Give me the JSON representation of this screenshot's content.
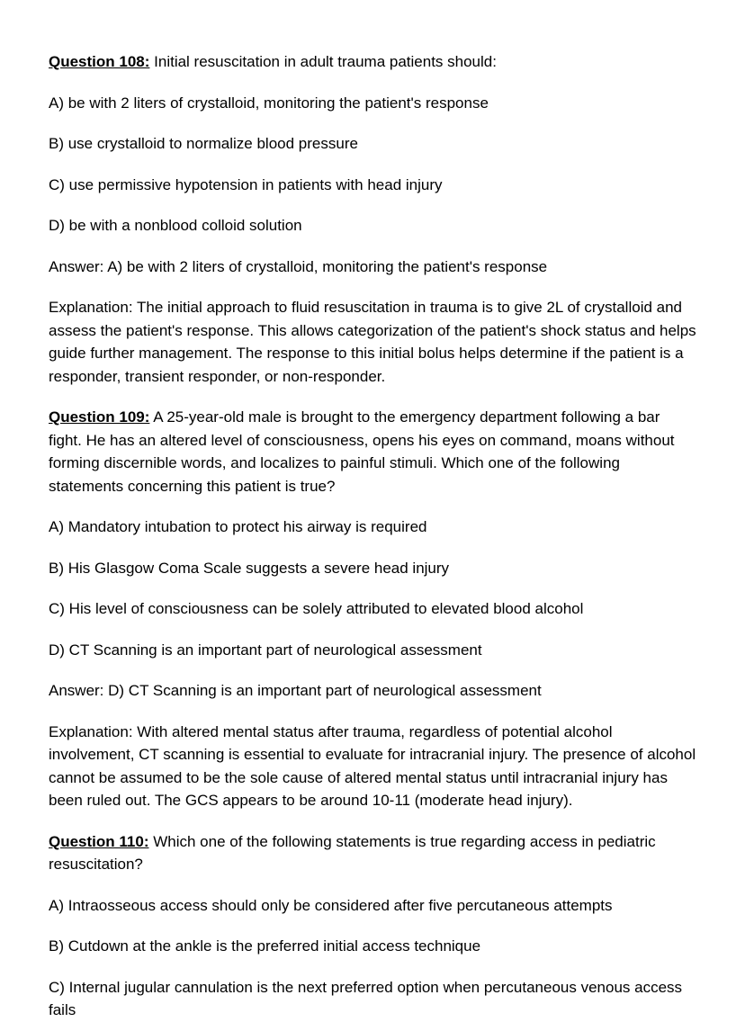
{
  "questions": [
    {
      "label": "Question 108:",
      "stem": " Initial resuscitation in adult trauma patients should:",
      "options": [
        "A) be with 2 liters of crystalloid, monitoring the patient's response",
        "B) use crystalloid to normalize blood pressure",
        "C) use permissive hypotension in patients with head injury",
        "D) be with a nonblood colloid solution"
      ],
      "answer": "Answer: A) be with 2 liters of crystalloid, monitoring the patient's response",
      "explanation": "Explanation: The initial approach to fluid resuscitation in trauma is to give 2L of crystalloid and assess the patient's response. This allows categorization of the patient's shock status and helps guide further management. The response to this initial bolus helps determine if the patient is a responder, transient responder, or non-responder."
    },
    {
      "label": "Question 109:",
      "stem": " A 25-year-old male is brought to the emergency department following a bar fight. He has an altered level of consciousness, opens his eyes on command, moans without forming discernible words, and localizes to painful stimuli. Which one of the following statements concerning this patient is true?",
      "options": [
        "A) Mandatory intubation to protect his airway is required",
        "B) His Glasgow Coma Scale suggests a severe head injury",
        "C) His level of consciousness can be solely attributed to elevated blood alcohol",
        "D) CT Scanning is an important part of neurological assessment"
      ],
      "answer": "Answer: D) CT Scanning is an important part of neurological assessment",
      "explanation": "Explanation: With altered mental status after trauma, regardless of potential alcohol involvement, CT scanning is essential to evaluate for intracranial injury. The presence of alcohol cannot be assumed to be the sole cause of altered mental status until intracranial injury has been ruled out. The GCS appears to be around 10-11 (moderate head injury)."
    },
    {
      "label": "Question 110:",
      "stem": " Which one of the following statements is true regarding access in pediatric resuscitation?",
      "options": [
        "A) Intraosseous access should only be considered after five percutaneous attempts",
        "B) Cutdown at the ankle is the preferred initial access technique",
        "C) Internal jugular cannulation is the next preferred option when percutaneous venous access fails"
      ],
      "answer": "",
      "explanation": ""
    }
  ]
}
